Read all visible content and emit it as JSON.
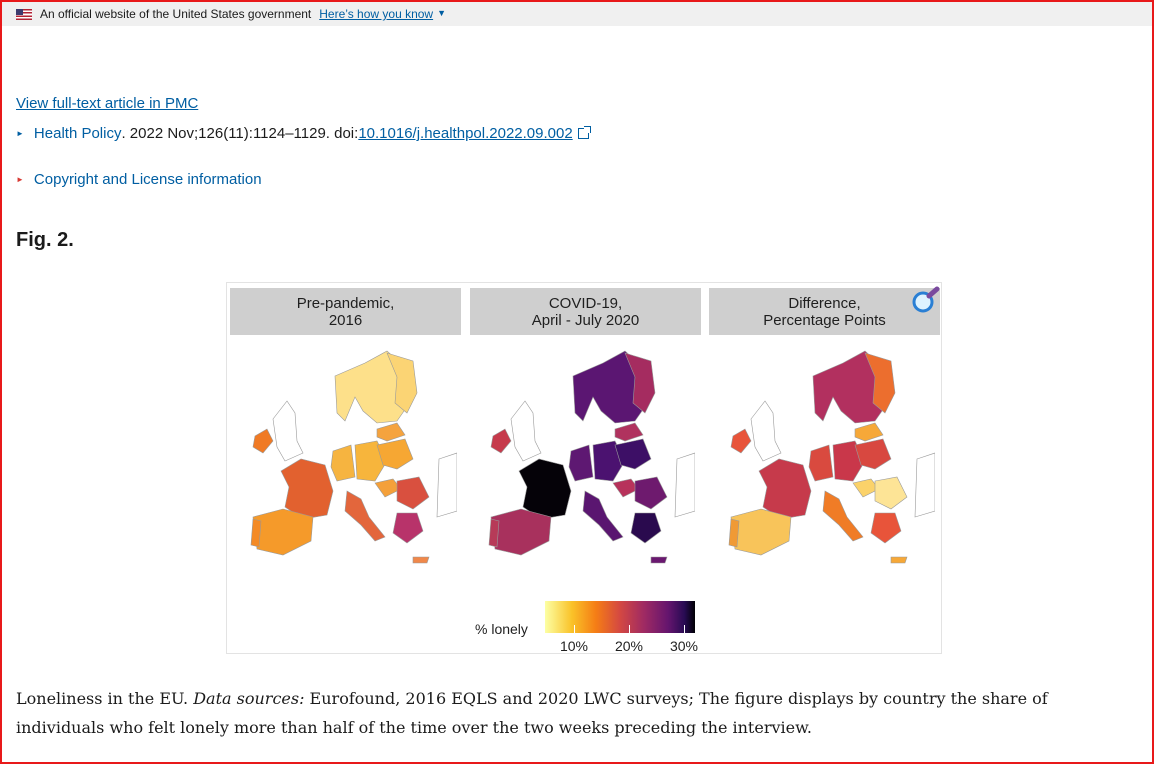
{
  "banner": {
    "text": "An official website of the United States government",
    "link": "Here’s how you know",
    "chevron_icon": "chevron-down-icon"
  },
  "article": {
    "pmc_link": "View full-text article in PMC",
    "journal": "Health Policy",
    "citation": ". 2022 Nov;126(11):1124–1129. doi: ",
    "doi": "10.1016/j.healthpol.2022.09.002",
    "external_icon": "external-link-icon",
    "copyright": "Copyright and License information"
  },
  "figure": {
    "label": "Fig. 2.",
    "magnify_icon": "magnifier-icon",
    "panels": [
      {
        "line1": "Pre-pandemic,",
        "line2": "2016"
      },
      {
        "line1": "COVID-19,",
        "line2": "April - July 2020"
      },
      {
        "line1": "Difference,",
        "line2": "Percentage Points"
      }
    ],
    "legend": {
      "title": "% lonely",
      "ticks": [
        "10%",
        "20%",
        "30%"
      ],
      "colors": [
        "#fcffa4",
        "#fac228",
        "#f57d15",
        "#d44842",
        "#9f2a63",
        "#65156e",
        "#280b53",
        "#000004"
      ]
    }
  },
  "caption": {
    "lead": "Loneliness in the EU. ",
    "sources_label": "Data sources:",
    "text": " Eurofound, 2016 EQLS and 2020 LWC surveys; The figure displays by country the share of individuals who felt lonely more than half of the time over the two weeks preceding the interview."
  },
  "colors": {
    "link": "#005ea2",
    "frame": "#e8191a",
    "banner_bg": "#f0f0f0"
  }
}
